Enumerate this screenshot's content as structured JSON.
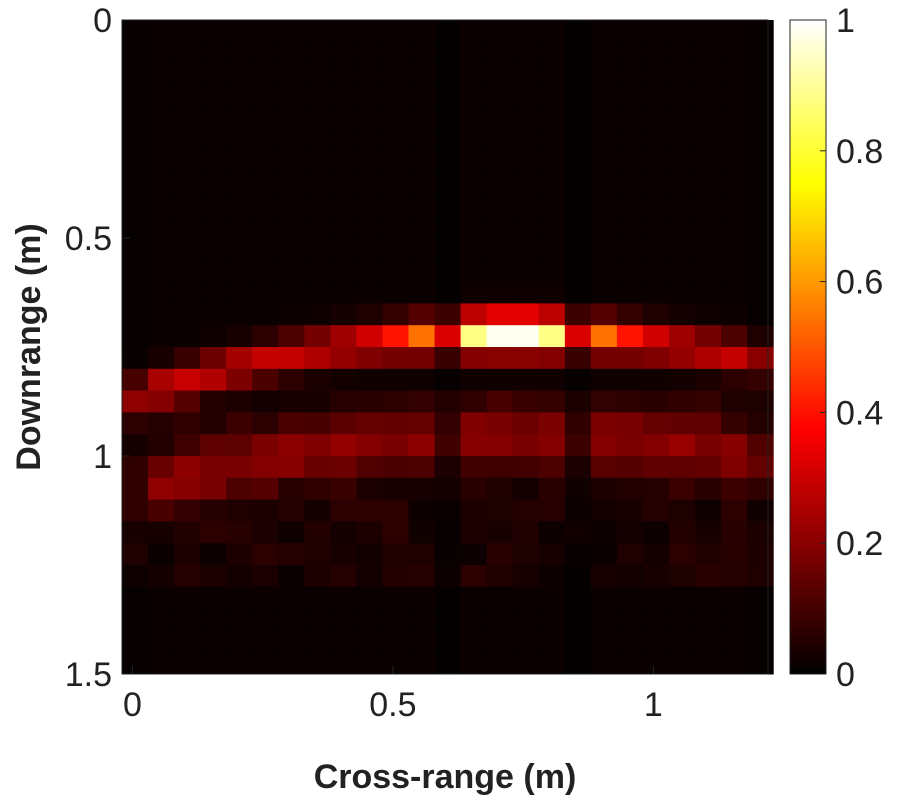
{
  "chart_data": {
    "type": "heatmap",
    "title": "",
    "xlabel": "Cross-range (m)",
    "ylabel": "Downrange (m)",
    "xlim": [
      -0.02,
      1.22
    ],
    "ylim": [
      0,
      1.5
    ],
    "y_reversed": true,
    "x_ticks": [
      "0",
      "0.5",
      "1"
    ],
    "x_tick_values": [
      0,
      0.5,
      1
    ],
    "y_ticks": [
      "0",
      "0.5",
      "1",
      "1.5"
    ],
    "y_tick_values": [
      0,
      0.5,
      1,
      1.5
    ],
    "colorbar": {
      "colormap": "hot",
      "clim": [
        0,
        1
      ],
      "ticks": [
        "0",
        "0.2",
        "0.4",
        "0.6",
        "0.8",
        "1"
      ],
      "tick_values": [
        0,
        0.2,
        0.4,
        0.6,
        0.8,
        1
      ]
    },
    "shape": "two arcs: strong upper arc from about 0.72 m (center, x≈0.73 m) to about 0.85 m (edges); fainter lower arc near 0.95 m",
    "peak": {
      "x": 0.73,
      "y": 0.72,
      "value": 1.0
    },
    "cell_size": {
      "x": 0.05,
      "y": 0.05
    }
  }
}
